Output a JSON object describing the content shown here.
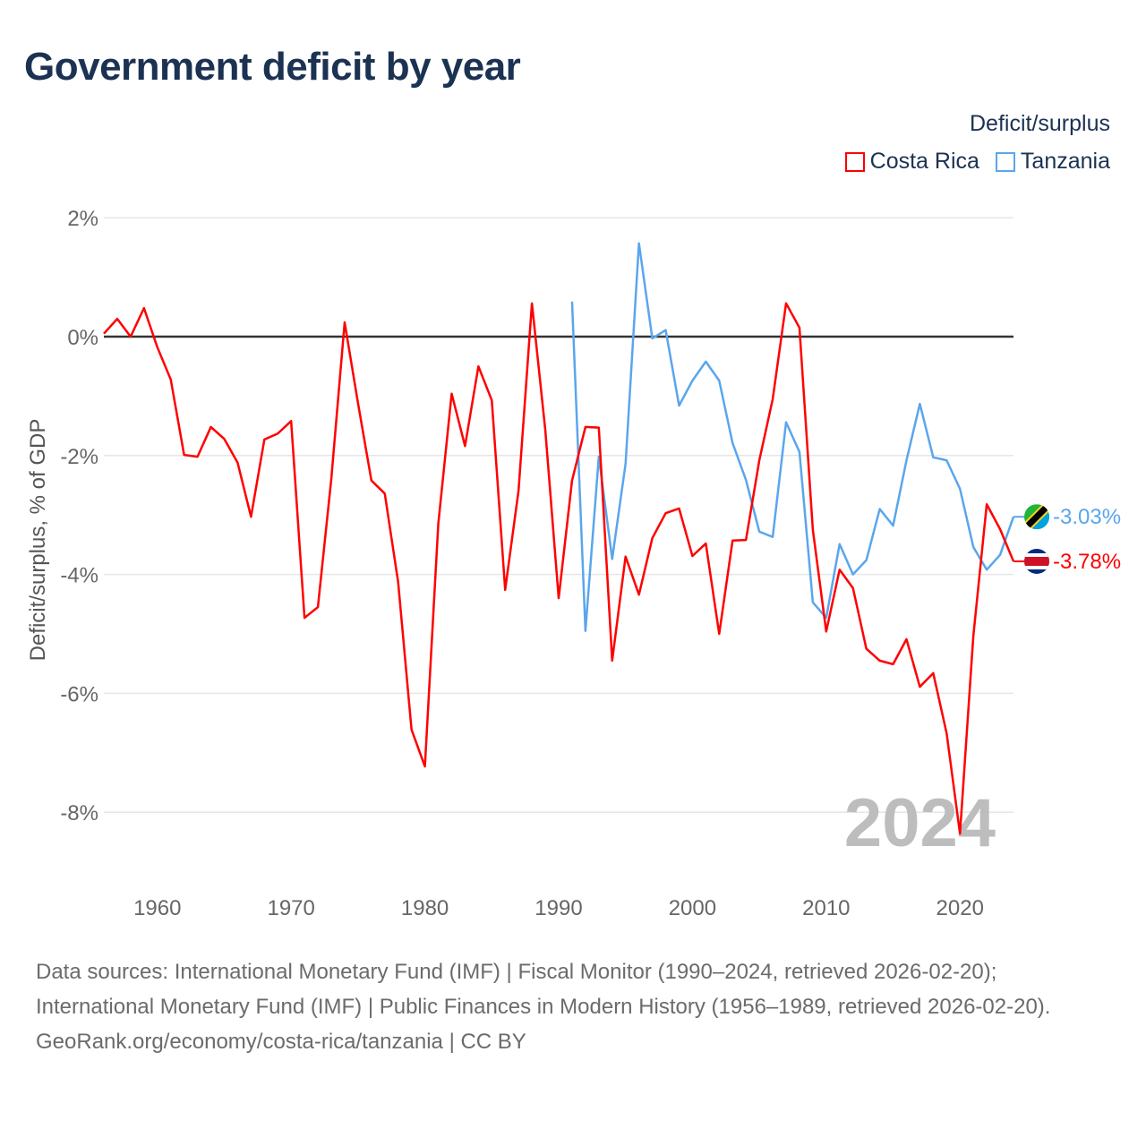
{
  "chart_data": {
    "type": "line",
    "title": "Government deficit by year",
    "ylabel": "Deficit/surplus, % of GDP",
    "xlabel": "",
    "xlim": [
      1956,
      2024
    ],
    "ylim": [
      -9,
      2.5
    ],
    "yticks": [
      2,
      0,
      -2,
      -4,
      -6,
      -8
    ],
    "ytick_labels": [
      "2%",
      "0%",
      "-2%",
      "-4%",
      "-6%",
      "-8%"
    ],
    "xticks": [
      1960,
      1970,
      1980,
      1990,
      2000,
      2010,
      2020
    ],
    "xtick_labels": [
      "1960",
      "1970",
      "1980",
      "1990",
      "2000",
      "2010",
      "2020"
    ],
    "grid": true,
    "legend_title": "Deficit/surplus",
    "legend_position": "top-right",
    "year_watermark": "2024",
    "series": [
      {
        "name": "Costa Rica",
        "color": "#ff0000",
        "end_label": "-3.78%",
        "flag": "costa-rica-flag",
        "start_year": 1956,
        "values": [
          0.05,
          0.3,
          0.0,
          0.48,
          -0.18,
          -0.72,
          -1.99,
          -2.02,
          -1.52,
          -1.72,
          -2.12,
          -3.03,
          -1.73,
          -1.63,
          -1.42,
          -4.73,
          -4.55,
          -2.4,
          0.24,
          -1.12,
          -2.42,
          -2.64,
          -4.13,
          -6.61,
          -7.23,
          -3.15,
          -0.96,
          -1.84,
          -0.5,
          -1.07,
          -4.26,
          -2.59,
          0.56,
          -1.57,
          -4.4,
          -2.42,
          -1.52,
          -1.53,
          -5.45,
          -3.7,
          -4.34,
          -3.39,
          -2.97,
          -2.89,
          -3.69,
          -3.48,
          -5.0,
          -3.43,
          -3.42,
          -2.08,
          -1.05,
          0.56,
          0.15,
          -3.25,
          -4.96,
          -3.92,
          -4.23,
          -5.25,
          -5.45,
          -5.51,
          -5.09,
          -5.89,
          -5.66,
          -6.67,
          -8.36,
          -5.03,
          -2.82,
          -3.24,
          -3.78
        ]
      },
      {
        "name": "Tanzania",
        "color": "#5aa6ec",
        "end_label": "-3.03%",
        "flag": "tanzania-flag",
        "start_year": 1991,
        "values": [
          0.59,
          -4.95,
          -2.02,
          -3.74,
          -2.14,
          1.57,
          -0.03,
          0.11,
          -1.16,
          -0.74,
          -0.42,
          -0.74,
          -1.79,
          -2.41,
          -3.28,
          -3.37,
          -1.44,
          -1.94,
          -4.47,
          -4.73,
          -3.49,
          -4.0,
          -3.76,
          -2.9,
          -3.18,
          -2.08,
          -1.13,
          -2.03,
          -2.08,
          -2.56,
          -3.54,
          -3.92,
          -3.67,
          -3.03
        ]
      }
    ]
  },
  "footer": {
    "sources": "Data sources: International Monetary Fund (IMF) | Fiscal Monitor (1990–2024, retrieved 2026-02-20); International Monetary Fund (IMF) | Public Finances in Modern History (1956–1989, retrieved 2026-02-20).",
    "credit": "GeoRank.org/economy/costa-rica/tanzania | CC BY"
  }
}
